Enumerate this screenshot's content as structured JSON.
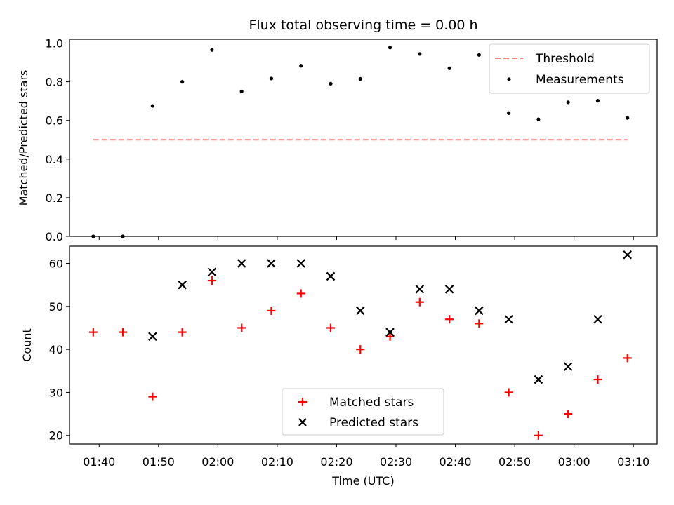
{
  "chart_data": [
    {
      "type": "scatter",
      "title": "Flux total observing time = 0.00 h",
      "xlabel": "",
      "ylabel": "Matched/Predicted stars",
      "ylim": [
        0.0,
        1.02
      ],
      "yticks": [
        "0.0",
        "0.2",
        "0.4",
        "0.6",
        "0.8",
        "1.0"
      ],
      "ytick_values": [
        0.0,
        0.2,
        0.4,
        0.6,
        0.8,
        1.0
      ],
      "legend_position": "top-right",
      "threshold": {
        "name": "Threshold",
        "value": 0.5,
        "x_start": "01:39",
        "x_end": "03:09",
        "color": "#ff7f7f"
      },
      "series": [
        {
          "name": "Measurements",
          "color": "#000000",
          "marker": "dot",
          "x": [
            "01:39",
            "01:44",
            "01:49",
            "01:54",
            "01:59",
            "02:04",
            "02:09",
            "02:14",
            "02:19",
            "02:24",
            "02:29",
            "02:34",
            "02:39",
            "02:44",
            "02:49",
            "02:54",
            "02:59",
            "03:04",
            "03:09"
          ],
          "values": [
            0.0,
            0.0,
            0.675,
            0.8,
            0.965,
            0.75,
            0.817,
            0.883,
            0.79,
            0.815,
            0.977,
            0.944,
            0.87,
            0.939,
            0.638,
            0.606,
            0.694,
            0.702,
            0.613
          ]
        }
      ]
    },
    {
      "type": "scatter",
      "title": "",
      "xlabel": "Time (UTC)",
      "ylabel": "Count",
      "ylim": [
        18,
        64
      ],
      "yticks": [
        "20",
        "30",
        "40",
        "50",
        "60"
      ],
      "ytick_values": [
        20,
        30,
        40,
        50,
        60
      ],
      "legend_position": "lower-center",
      "series": [
        {
          "name": "Matched stars",
          "color": "#ff0000",
          "marker": "plus",
          "x": [
            "01:39",
            "01:44",
            "01:49",
            "01:54",
            "01:59",
            "02:04",
            "02:09",
            "02:14",
            "02:19",
            "02:24",
            "02:29",
            "02:34",
            "02:39",
            "02:44",
            "02:49",
            "02:54",
            "02:59",
            "03:04",
            "03:09"
          ],
          "values": [
            44,
            44,
            29,
            44,
            56,
            45,
            49,
            53,
            45,
            40,
            43,
            51,
            47,
            46,
            30,
            20,
            25,
            33,
            38
          ]
        },
        {
          "name": "Predicted stars",
          "color": "#000000",
          "marker": "x",
          "x": [
            "01:49",
            "01:54",
            "01:59",
            "02:04",
            "02:09",
            "02:14",
            "02:19",
            "02:24",
            "02:29",
            "02:34",
            "02:39",
            "02:44",
            "02:49",
            "02:54",
            "02:59",
            "03:04",
            "03:09"
          ],
          "values": [
            43,
            55,
            58,
            60,
            60,
            60,
            57,
            49,
            44,
            54,
            54,
            49,
            47,
            33,
            36,
            47,
            62
          ]
        }
      ]
    }
  ],
  "x_axis": {
    "xlim": [
      "01:35",
      "03:14"
    ],
    "tick_labels": [
      "01:40",
      "01:50",
      "02:00",
      "02:10",
      "02:20",
      "02:30",
      "02:40",
      "02:50",
      "03:00",
      "03:10"
    ]
  }
}
